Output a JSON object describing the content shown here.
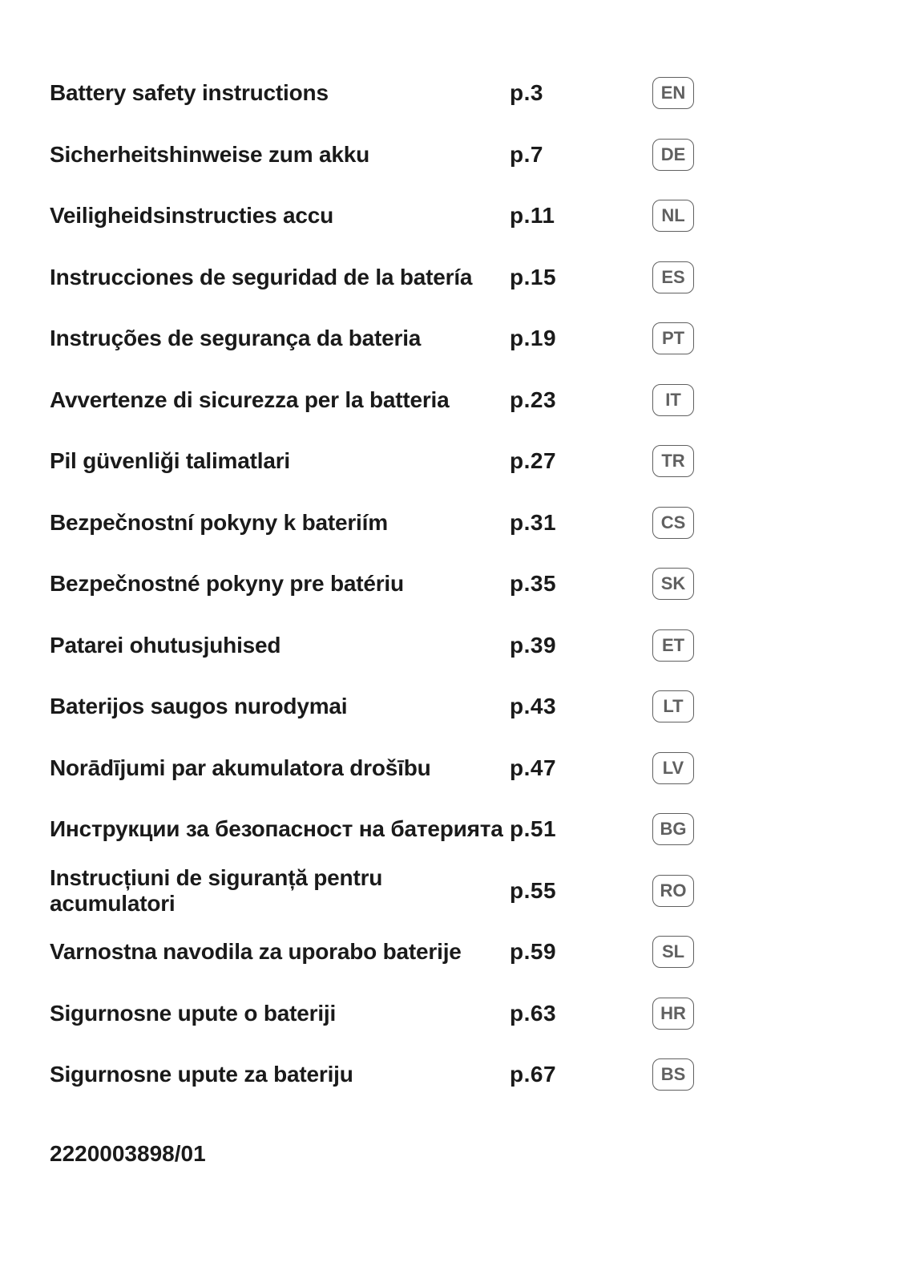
{
  "text_color": "#1a1a1a",
  "pill_border_color": "#606060",
  "pill_text_color": "#606060",
  "background_color": "#ffffff",
  "title_fontsize": 28,
  "title_fontweight": 700,
  "page_fontsize": 28,
  "page_fontweight": 700,
  "pill_fontsize": 22,
  "pill_fontweight": 600,
  "pill_border_radius": 10,
  "row_height": 76.5,
  "entries": [
    {
      "title": "Battery safety instructions",
      "page": "p.3",
      "lang": "EN"
    },
    {
      "title": "Sicherheitshinweise zum akku",
      "page": "p.7",
      "lang": "DE"
    },
    {
      "title": "Veiligheidsinstructies accu",
      "page": "p.11",
      "lang": "NL"
    },
    {
      "title": "Instrucciones de seguridad de la batería",
      "page": "p.15",
      "lang": "ES"
    },
    {
      "title": "Instruções de segurança da bateria",
      "page": "p.19",
      "lang": "PT"
    },
    {
      "title": "Avvertenze di sicurezza per la batteria",
      "page": "p.23",
      "lang": "IT"
    },
    {
      "title": "Pil güvenliği talimatlari",
      "page": "p.27",
      "lang": "TR"
    },
    {
      "title": "Bezpečnostní pokyny k bateriím",
      "page": "p.31",
      "lang": "CS"
    },
    {
      "title": "Bezpečnostné pokyny pre batériu",
      "page": "p.35",
      "lang": "SK"
    },
    {
      "title": "Patarei ohutusjuhised",
      "page": "p.39",
      "lang": "ET"
    },
    {
      "title": "Baterijos saugos nurodymai",
      "page": "p.43",
      "lang": "LT"
    },
    {
      "title": "Norādījumi par akumulatora drošību",
      "page": "p.47",
      "lang": "LV"
    },
    {
      "title": "Инструкции за безопасност на батерията",
      "page": "p.51",
      "lang": "BG"
    },
    {
      "title": "Instrucțiuni de siguranță pentru acumulatori",
      "page": "p.55",
      "lang": "RO"
    },
    {
      "title": "Varnostna navodila za uporabo baterije",
      "page": "p.59",
      "lang": "SL"
    },
    {
      "title": "Sigurnosne upute o bateriji",
      "page": "p.63",
      "lang": "HR"
    },
    {
      "title": "Sigurnosne upute za bateriju",
      "page": "p.67",
      "lang": "BS"
    }
  ],
  "document_number": "2220003898/01"
}
